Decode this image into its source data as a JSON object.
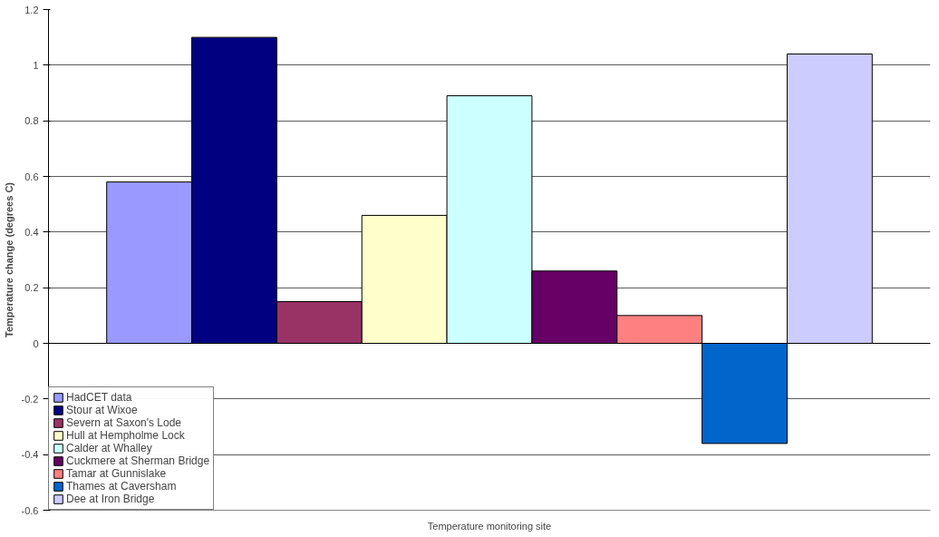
{
  "chart_data": {
    "type": "bar",
    "xlabel": "Temperature monitoring site",
    "ylabel": "Temperature change (degrees C)",
    "categories": [
      null
    ],
    "series": [
      {
        "name": "HadCET data",
        "color": "#9999ff",
        "values": [
          0.58
        ]
      },
      {
        "name": "Stour at Wixoe",
        "color": "#000080",
        "values": [
          1.1
        ]
      },
      {
        "name": "Severn at Saxon's Lode",
        "color": "#993366",
        "values": [
          0.15
        ]
      },
      {
        "name": "Hull at Hempholme Lock",
        "color": "#ffffcc",
        "values": [
          0.46
        ]
      },
      {
        "name": "Calder at Whalley",
        "color": "#ccffff",
        "values": [
          0.89
        ]
      },
      {
        "name": "Cuckmere at Sherman Bridge",
        "color": "#660066",
        "values": [
          0.26
        ]
      },
      {
        "name": "Tamar at Gunnislake",
        "color": "#ff8080",
        "values": [
          0.1
        ]
      },
      {
        "name": "Thames at Caversham",
        "color": "#0066cc",
        "values": [
          -0.36
        ]
      },
      {
        "name": "Dee at Iron Bridge",
        "color": "#ccccff",
        "values": [
          1.04
        ]
      }
    ],
    "ylim": [
      -0.6,
      1.2
    ],
    "yticks": [
      -0.6,
      -0.4,
      -0.2,
      0,
      0.2,
      0.4,
      0.6,
      0.8,
      1,
      1.2
    ],
    "grid": "y",
    "legend": "bottom left"
  }
}
